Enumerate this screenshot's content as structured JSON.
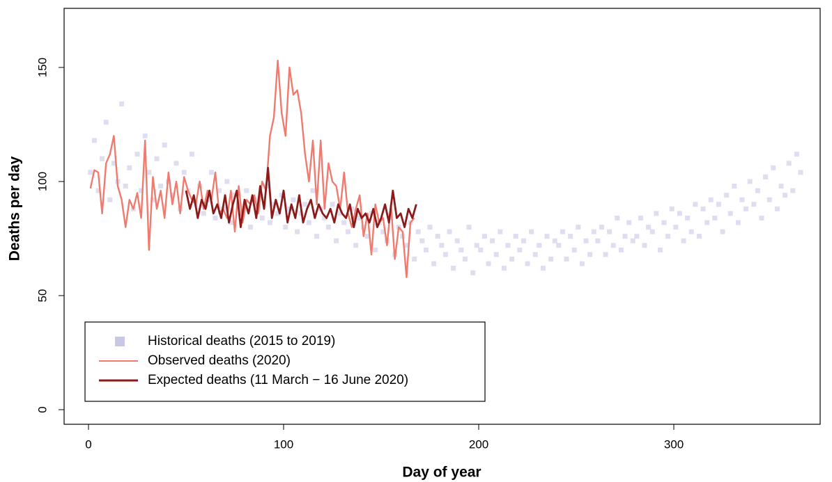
{
  "chart_data": {
    "type": "scatter",
    "xlabel": "Day of year",
    "ylabel": "Deaths per day",
    "xlim": [
      -12.5,
      375
    ],
    "ylim": [
      -6.4,
      175.9
    ],
    "xticks": [
      0,
      100,
      200,
      300
    ],
    "yticks": [
      0,
      50,
      100,
      150
    ],
    "legend": "bottom-left",
    "series": [
      {
        "name": "Historical deaths (2015 to 2019)",
        "type": "scatter",
        "color": "#c8c8e6",
        "x": [
          1,
          3,
          5,
          7,
          9,
          11,
          13,
          15,
          17,
          19,
          21,
          23,
          25,
          27,
          29,
          31,
          33,
          35,
          37,
          39,
          41,
          43,
          45,
          47,
          49,
          51,
          53,
          55,
          57,
          59,
          61,
          63,
          65,
          67,
          69,
          71,
          73,
          75,
          77,
          79,
          81,
          83,
          85,
          87,
          89,
          91,
          93,
          95,
          97,
          99,
          101,
          103,
          105,
          107,
          109,
          111,
          113,
          115,
          117,
          119,
          121,
          123,
          125,
          127,
          129,
          131,
          133,
          135,
          137,
          139,
          141,
          143,
          145,
          147,
          149,
          151,
          153,
          155,
          157,
          159,
          161,
          163,
          165,
          167,
          169,
          171,
          173,
          175,
          177,
          179,
          181,
          183,
          185,
          187,
          189,
          191,
          193,
          195,
          197,
          199,
          201,
          203,
          205,
          207,
          209,
          211,
          213,
          215,
          217,
          219,
          221,
          223,
          225,
          227,
          229,
          231,
          233,
          235,
          237,
          239,
          241,
          243,
          245,
          247,
          249,
          251,
          253,
          255,
          257,
          259,
          261,
          263,
          265,
          267,
          269,
          271,
          273,
          275,
          277,
          279,
          281,
          283,
          285,
          287,
          289,
          291,
          293,
          295,
          297,
          299,
          301,
          303,
          305,
          307,
          309,
          311,
          313,
          315,
          317,
          319,
          321,
          323,
          325,
          327,
          329,
          331,
          333,
          335,
          337,
          339,
          341,
          343,
          345,
          347,
          349,
          351,
          353,
          355,
          357,
          359,
          361,
          363,
          365
        ],
        "values": [
          104,
          118,
          96,
          110,
          126,
          92,
          108,
          100,
          134,
          98,
          106,
          88,
          112,
          96,
          120,
          104,
          92,
          110,
          98,
          116,
          100,
          94,
          108,
          88,
          104,
          96,
          112,
          90,
          98,
          86,
          92,
          104,
          84,
          96,
          88,
          100,
          82,
          94,
          90,
          86,
          96,
          80,
          92,
          88,
          84,
          98,
          82,
          90,
          86,
          94,
          80,
          88,
          92,
          78,
          86,
          90,
          82,
          96,
          76,
          88,
          84,
          80,
          90,
          74,
          86,
          82,
          78,
          88,
          72,
          84,
          80,
          76,
          86,
          70,
          82,
          78,
          74,
          84,
          68,
          80,
          76,
          72,
          82,
          66,
          78,
          74,
          70,
          80,
          64,
          76,
          72,
          68,
          78,
          62,
          74,
          70,
          66,
          80,
          60,
          72,
          70,
          76,
          64,
          74,
          68,
          78,
          62,
          72,
          66,
          76,
          70,
          74,
          64,
          78,
          68,
          72,
          62,
          76,
          66,
          74,
          72,
          78,
          66,
          76,
          70,
          80,
          64,
          74,
          68,
          78,
          74,
          80,
          68,
          78,
          72,
          84,
          70,
          76,
          82,
          74,
          76,
          84,
          72,
          80,
          78,
          86,
          70,
          82,
          76,
          88,
          80,
          86,
          74,
          84,
          78,
          90,
          76,
          88,
          82,
          92,
          84,
          90,
          78,
          94,
          86,
          98,
          82,
          92,
          88,
          100,
          90,
          96,
          84,
          102,
          92,
          106,
          88,
          98,
          94,
          108,
          96,
          112,
          104
        ]
      },
      {
        "name": "Observed deaths (2020)",
        "type": "line",
        "color": "#f07a6e",
        "x": [
          1,
          3,
          5,
          7,
          9,
          11,
          13,
          15,
          17,
          19,
          21,
          23,
          25,
          27,
          29,
          31,
          33,
          35,
          37,
          39,
          41,
          43,
          45,
          47,
          49,
          51,
          53,
          55,
          57,
          59,
          61,
          63,
          65,
          67,
          69,
          71,
          73,
          75,
          77,
          79,
          81,
          83,
          85,
          87,
          89,
          91,
          93,
          95,
          97,
          99,
          101,
          103,
          105,
          107,
          109,
          111,
          113,
          115,
          117,
          119,
          121,
          123,
          125,
          127,
          129,
          131,
          133,
          135,
          137,
          139,
          141,
          143,
          145,
          147,
          149,
          151,
          153,
          155,
          157,
          159,
          161,
          163,
          165,
          167
        ],
        "values": [
          97,
          105,
          104,
          86,
          108,
          112,
          120,
          98,
          92,
          80,
          92,
          88,
          95,
          84,
          118,
          70,
          102,
          88,
          96,
          84,
          104,
          90,
          100,
          86,
          102,
          96,
          92,
          90,
          100,
          88,
          96,
          92,
          104,
          86,
          88,
          84,
          96,
          78,
          98,
          82,
          92,
          90,
          94,
          86,
          100,
          96,
          120,
          128,
          153,
          130,
          120,
          150,
          138,
          140,
          130,
          112,
          100,
          118,
          90,
          118,
          88,
          108,
          100,
          98,
          88,
          104,
          86,
          80,
          88,
          94,
          76,
          86,
          68,
          90,
          82,
          84,
          72,
          90,
          66,
          80,
          78,
          58,
          82,
          84
        ]
      },
      {
        "name": "Expected deaths (11 March − 16 June 2020)",
        "type": "line",
        "color": "#8b1a1a",
        "x": [
          50,
          52,
          54,
          56,
          58,
          60,
          62,
          64,
          66,
          68,
          70,
          72,
          74,
          76,
          78,
          80,
          82,
          84,
          86,
          88,
          90,
          92,
          94,
          96,
          98,
          100,
          102,
          104,
          106,
          108,
          110,
          112,
          114,
          116,
          118,
          120,
          122,
          124,
          126,
          128,
          130,
          132,
          134,
          136,
          138,
          140,
          142,
          144,
          146,
          148,
          150,
          152,
          154,
          156,
          158,
          160,
          162,
          164,
          166,
          168
        ],
        "values": [
          96,
          88,
          94,
          84,
          92,
          88,
          96,
          86,
          90,
          84,
          94,
          82,
          90,
          96,
          80,
          92,
          86,
          94,
          84,
          98,
          88,
          106,
          84,
          92,
          86,
          96,
          82,
          90,
          84,
          94,
          82,
          88,
          92,
          84,
          90,
          86,
          84,
          88,
          82,
          90,
          86,
          84,
          90,
          80,
          88,
          84,
          86,
          82,
          88,
          80,
          84,
          90,
          82,
          96,
          84,
          86,
          80,
          88,
          84,
          90
        ]
      }
    ]
  }
}
